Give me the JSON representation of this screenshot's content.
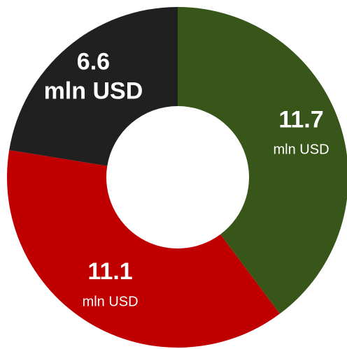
{
  "chart_data": {
    "type": "donut",
    "values": [
      11.7,
      11.1,
      6.6
    ],
    "colors": [
      "#38561a",
      "#c00000",
      "#202020"
    ],
    "unit": "mln USD"
  }
}
